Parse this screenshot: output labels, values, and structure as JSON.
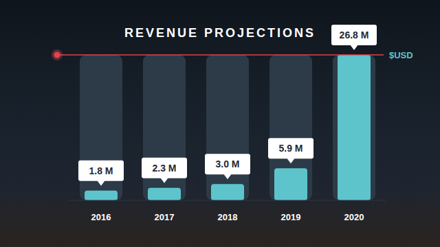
{
  "chart_data": {
    "type": "bar",
    "title": "REVENUE PROJECTIONS",
    "ylabel": "$USD",
    "categories": [
      "2016",
      "2017",
      "2018",
      "2019",
      "2020"
    ],
    "values": [
      1.8,
      2.3,
      3.0,
      5.9,
      26.8
    ],
    "value_labels": [
      "1.8 M",
      "2.3 M",
      "3.0 M",
      "5.9 M",
      "26.8 M"
    ],
    "color": "#5ec4cc",
    "ylim": [
      0,
      26.8
    ],
    "yticks": [
      0,
      26.8
    ],
    "grid": true,
    "data_labels": true,
    "tick_labels": "x"
  }
}
